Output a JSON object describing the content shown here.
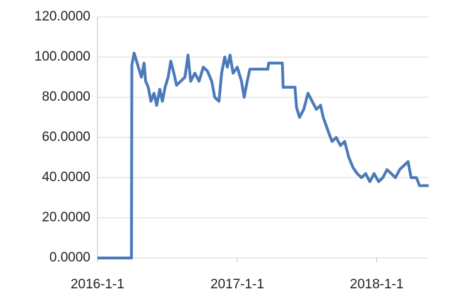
{
  "chart_data": {
    "type": "line",
    "x": [
      "2016-01-01",
      "2016-03-30",
      "2016-03-31",
      "2016-04-06",
      "2016-04-17",
      "2016-04-25",
      "2016-05-02",
      "2016-05-06",
      "2016-05-13",
      "2016-05-20",
      "2016-05-28",
      "2016-06-04",
      "2016-06-12",
      "2016-06-19",
      "2016-06-26",
      "2016-07-04",
      "2016-07-11",
      "2016-07-19",
      "2016-07-26",
      "2016-08-06",
      "2016-08-17",
      "2016-08-25",
      "2016-09-01",
      "2016-09-12",
      "2016-09-23",
      "2016-10-04",
      "2016-10-15",
      "2016-10-26",
      "2016-11-03",
      "2016-11-14",
      "2016-11-21",
      "2016-11-29",
      "2016-12-06",
      "2016-12-13",
      "2016-12-21",
      "2017-01-01",
      "2017-01-12",
      "2017-01-19",
      "2017-01-27",
      "2017-02-03",
      "2017-03-22",
      "2017-03-24",
      "2017-04-29",
      "2017-05-01",
      "2017-06-01",
      "2017-06-05",
      "2017-06-13",
      "2017-06-24",
      "2017-07-05",
      "2017-07-16",
      "2017-07-27",
      "2017-08-07",
      "2017-08-14",
      "2017-08-29",
      "2017-09-06",
      "2017-09-17",
      "2017-09-28",
      "2017-10-09",
      "2017-10-20",
      "2017-10-31",
      "2017-11-11",
      "2017-11-22",
      "2017-12-03",
      "2017-12-14",
      "2017-12-25",
      "2018-01-06",
      "2018-01-17",
      "2018-01-28",
      "2018-02-08",
      "2018-02-19",
      "2018-03-02",
      "2018-03-13",
      "2018-03-24",
      "2018-04-01",
      "2018-04-15",
      "2018-04-23",
      "2018-05-17"
    ],
    "series": [
      {
        "color": "#4a7ab8",
        "values": [
          0,
          0,
          96,
          102,
          95,
          90,
          97,
          88,
          85,
          78,
          82,
          76,
          84,
          78,
          85,
          90,
          98,
          92,
          86,
          88,
          90,
          101,
          88,
          92,
          88,
          95,
          93,
          88,
          80,
          78,
          92,
          100,
          95,
          101,
          92,
          95,
          88,
          80,
          88,
          94,
          94,
          97,
          97,
          85,
          85,
          75,
          70,
          74,
          82,
          78,
          74,
          76,
          70,
          62,
          58,
          60,
          56,
          58,
          50,
          45,
          42,
          40,
          42,
          38,
          42,
          38,
          40,
          44,
          42,
          40,
          44,
          46,
          48,
          40,
          40,
          36,
          36
        ]
      }
    ],
    "xlim": [
      "2016-01-01",
      "2018-05-17"
    ],
    "xticks": [
      {
        "value": "2016-01-01",
        "label": "2016-1-1"
      },
      {
        "value": "2017-01-01",
        "label": "2017-1-1"
      },
      {
        "value": "2018-01-01",
        "label": "2018-1-1"
      }
    ],
    "ylim": [
      0,
      120
    ],
    "yticks": [
      {
        "value": 0,
        "label": "0.0000"
      },
      {
        "value": 20,
        "label": "20.0000"
      },
      {
        "value": 40,
        "label": "40.0000"
      },
      {
        "value": 60,
        "label": "60.0000"
      },
      {
        "value": 80,
        "label": "80.0000"
      },
      {
        "value": 100,
        "label": "100.0000"
      },
      {
        "value": 120,
        "label": "120.0000"
      }
    ],
    "grid": true
  }
}
